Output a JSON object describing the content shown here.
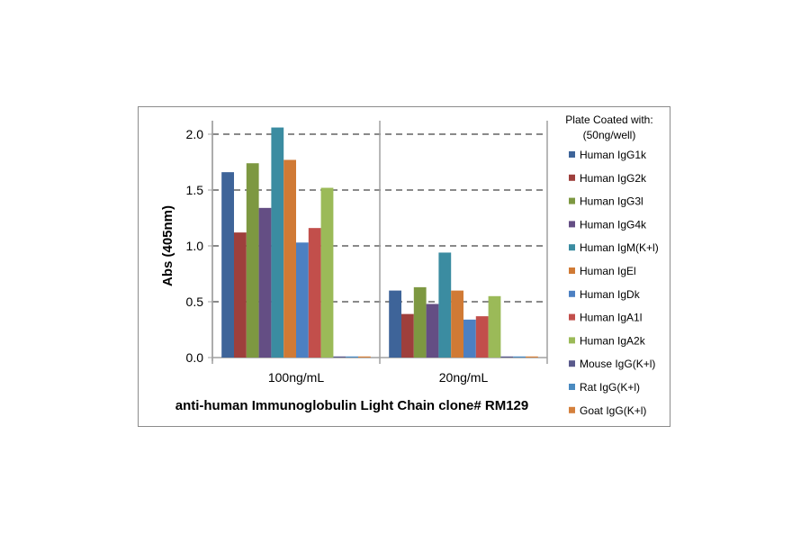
{
  "chart_data": {
    "type": "bar",
    "title": "",
    "xlabel": "anti-human Immunoglobulin Light Chain clone# RM129",
    "ylabel": "Abs (405nm)",
    "ylim": [
      0,
      2.0
    ],
    "yticks": [
      "0.0",
      "0.5",
      "1.0",
      "1.5",
      "2.0"
    ],
    "grid": "horizontal dashed",
    "legend_placement": "right",
    "legend_title": [
      "Plate Coated with:",
      "(50ng/well)"
    ],
    "categories": [
      "100ng/mL",
      "20ng/mL"
    ],
    "series": [
      {
        "name": "Human IgG1k",
        "color": "#3e6499",
        "values": [
          1.66,
          0.6
        ]
      },
      {
        "name": "Human IgG2k",
        "color": "#9e3f3c",
        "values": [
          1.12,
          0.39
        ]
      },
      {
        "name": "Human IgG3l",
        "color": "#7d9841",
        "values": [
          1.74,
          0.63
        ]
      },
      {
        "name": "Human IgG4k",
        "color": "#644e84",
        "values": [
          1.34,
          0.48
        ]
      },
      {
        "name": "Human IgM(K+l)",
        "color": "#3b8ca1",
        "values": [
          2.06,
          0.94
        ]
      },
      {
        "name": "Human IgEl",
        "color": "#d07a35",
        "values": [
          1.77,
          0.6
        ]
      },
      {
        "name": "Human IgDk",
        "color": "#4c80c2",
        "values": [
          1.03,
          0.34
        ]
      },
      {
        "name": "Human IgA1l",
        "color": "#c24f4b",
        "values": [
          1.16,
          0.37
        ]
      },
      {
        "name": "Human IgA2k",
        "color": "#9bba58",
        "values": [
          1.52,
          0.55
        ]
      },
      {
        "name": "Mouse IgG(K+l)",
        "color": "#5a5a8c",
        "values": [
          0.01,
          0.01
        ]
      },
      {
        "name": "Rat IgG(K+l)",
        "color": "#4a8ac0",
        "values": [
          0.01,
          0.01
        ]
      },
      {
        "name": "Goat IgG(K+l)",
        "color": "#d4803c",
        "values": [
          0.01,
          0.01
        ]
      }
    ]
  }
}
